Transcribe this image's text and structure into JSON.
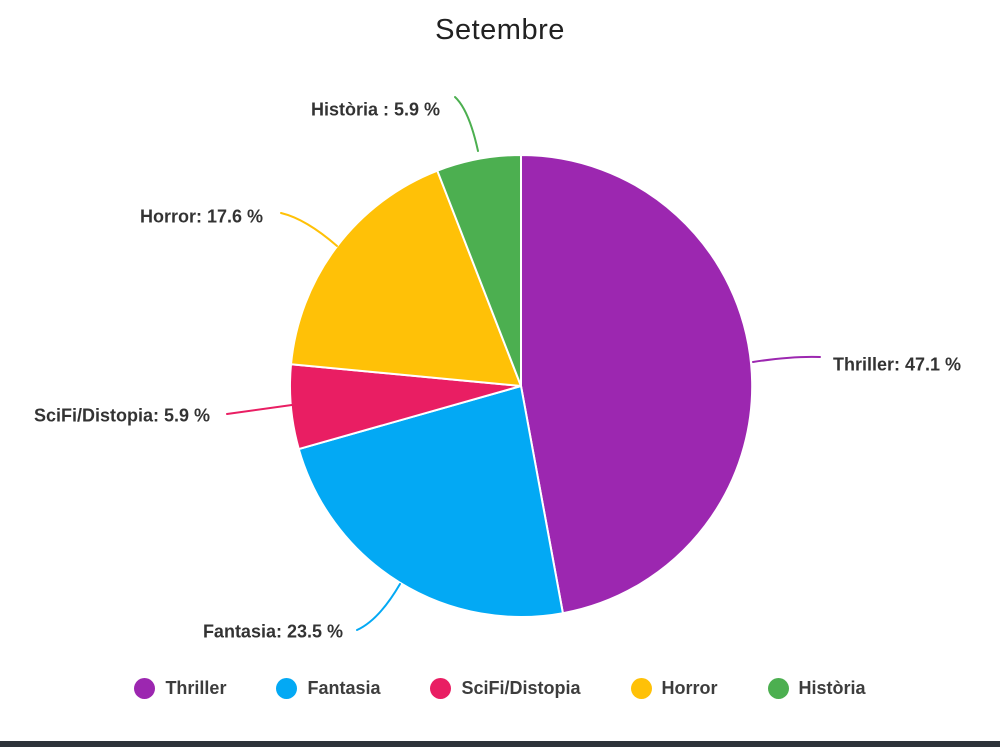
{
  "title": "Setembre",
  "chart_data": {
    "type": "pie",
    "title": "Setembre",
    "unit": "%",
    "direction": "clockwise",
    "start_angle_deg": 0,
    "legend_position": "bottom",
    "series": [
      {
        "name": "Thriller",
        "value": 47.1,
        "color": "#9C27B0",
        "label_text": "Thriller: 47.1 %"
      },
      {
        "name": "Fantasia",
        "value": 23.5,
        "color": "#03A9F4",
        "label_text": "Fantasia: 23.5 %"
      },
      {
        "name": "SciFi/Distopia",
        "value": 5.9,
        "color": "#E91E63",
        "label_text": "SciFi/Distopia: 5.9 %"
      },
      {
        "name": "Horror",
        "value": 17.6,
        "color": "#FFC107",
        "label_text": "Horror: 17.6 %"
      },
      {
        "name": "Història",
        "value": 5.9,
        "color": "#4CAF50",
        "label_text": "Història : 5.9 %"
      }
    ]
  },
  "footer": {
    "bar_color": "#2e333a"
  }
}
